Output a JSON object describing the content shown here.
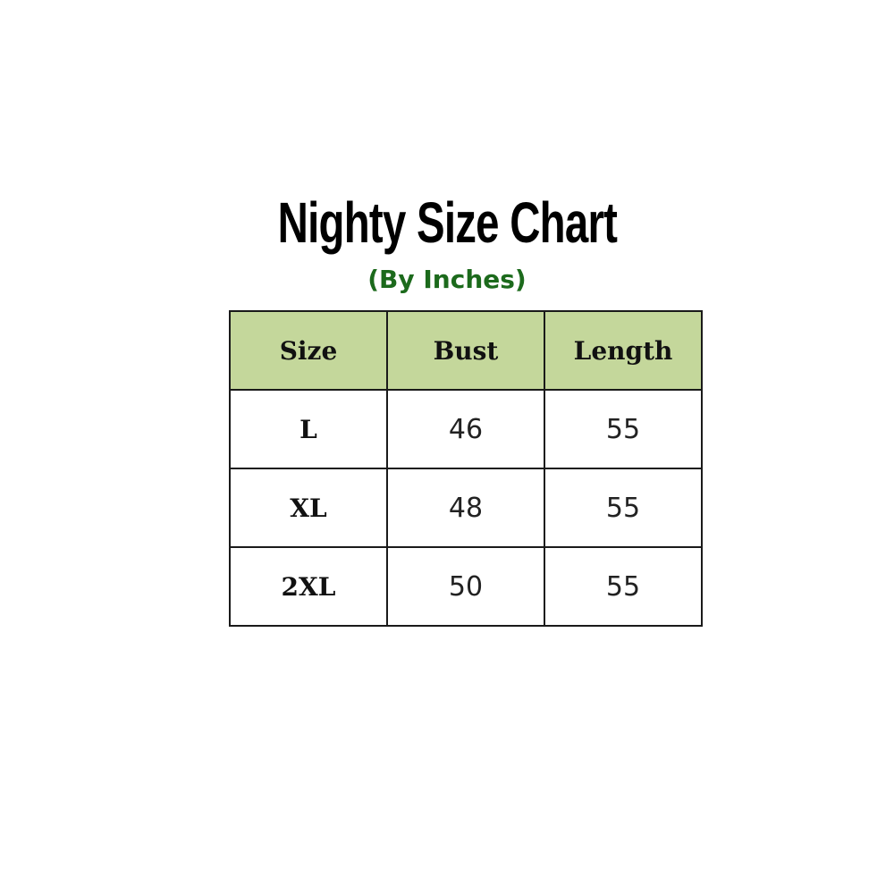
{
  "title": "Nighty Size Chart",
  "subtitle": "(By Inches)",
  "colors": {
    "header_bg": "#c4d79b",
    "subtitle": "#1c6a1c"
  },
  "table": {
    "headers": [
      "Size",
      "Bust",
      "Length"
    ],
    "rows": [
      [
        "L",
        "46",
        "55"
      ],
      [
        "XL",
        "48",
        "55"
      ],
      [
        "2XL",
        "50",
        "55"
      ]
    ]
  }
}
